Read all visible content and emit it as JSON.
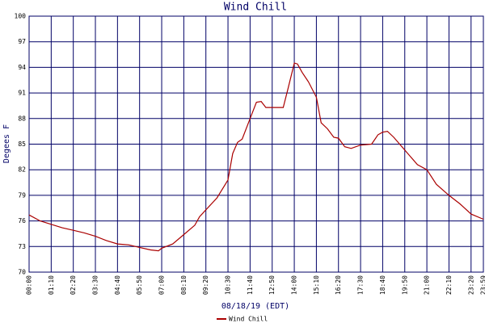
{
  "chart_data": {
    "type": "line",
    "title": "Wind Chill",
    "x_label": "08/18/19 (EDT)",
    "y_label": "Degees F",
    "x": [
      "00:00",
      "00:35",
      "01:10",
      "01:45",
      "02:20",
      "02:55",
      "03:30",
      "04:05",
      "04:40",
      "05:15",
      "05:50",
      "06:25",
      "06:50",
      "07:00",
      "07:35",
      "08:10",
      "08:45",
      "09:00",
      "09:20",
      "09:55",
      "10:30",
      "10:45",
      "11:00",
      "11:15",
      "11:40",
      "12:00",
      "12:15",
      "12:30",
      "12:50",
      "13:25",
      "13:40",
      "14:00",
      "14:10",
      "14:25",
      "14:45",
      "15:10",
      "15:25",
      "15:45",
      "16:05",
      "16:20",
      "16:40",
      "17:00",
      "17:30",
      "18:05",
      "18:25",
      "18:40",
      "18:55",
      "19:15",
      "19:50",
      "20:30",
      "21:00",
      "21:30",
      "22:10",
      "22:45",
      "23:20",
      "23:59"
    ],
    "series": [
      {
        "name": "Wind Chill",
        "color": "#aa0000",
        "values": [
          76.7,
          76.0,
          75.6,
          75.2,
          74.9,
          74.6,
          74.2,
          73.7,
          73.3,
          73.2,
          72.9,
          72.6,
          72.5,
          72.8,
          73.3,
          74.4,
          75.5,
          76.5,
          77.3,
          78.7,
          80.8,
          83.9,
          85.2,
          85.6,
          88.0,
          89.9,
          90.0,
          89.3,
          89.3,
          89.3,
          91.5,
          94.5,
          94.4,
          93.4,
          92.3,
          90.5,
          87.5,
          86.8,
          85.8,
          85.7,
          84.7,
          84.5,
          84.9,
          85.0,
          86.1,
          86.4,
          86.5,
          85.8,
          84.3,
          82.6,
          82.0,
          80.3,
          79.0,
          78.0,
          76.8,
          76.2
        ]
      }
    ],
    "xlim": [
      "00:00",
      "23:59"
    ],
    "xticks": [
      "00:00",
      "01:10",
      "02:20",
      "03:30",
      "04:40",
      "05:50",
      "07:00",
      "08:10",
      "09:20",
      "10:30",
      "11:40",
      "12:50",
      "14:00",
      "15:10",
      "16:20",
      "17:30",
      "18:40",
      "19:50",
      "21:00",
      "22:10",
      "23:20",
      "23:59"
    ],
    "ylim": [
      70,
      100
    ],
    "yticks": [
      70,
      73,
      76,
      79,
      82,
      85,
      88,
      91,
      94,
      97,
      100
    ],
    "grid": true,
    "grid_color": "#000066",
    "legend": "bottom"
  }
}
